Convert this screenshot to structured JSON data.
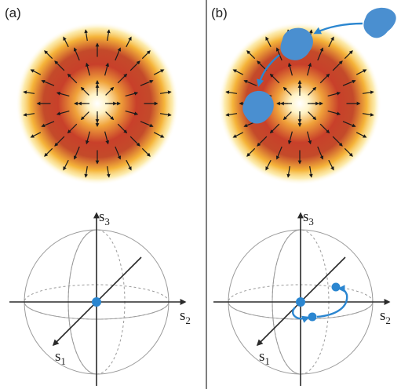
{
  "panels": [
    {
      "id": "a",
      "label": "(a)",
      "axes": {
        "s1": "s",
        "s1_sub": "1",
        "s2": "s",
        "s2_sub": "2",
        "s3": "s",
        "s3_sub": "3"
      }
    },
    {
      "id": "b",
      "label": "(b)",
      "axes": {
        "s1": "s",
        "s1_sub": "1",
        "s2": "s",
        "s2_sub": "2",
        "s3": "s",
        "s3_sub": "3"
      }
    }
  ],
  "colors": {
    "beam_core": "#ffffff",
    "beam_mid": "#f2a23c",
    "beam_ring": "#c8402a",
    "beam_outer": "#f7d24a",
    "arrow": "#1a1a1a",
    "particle": "#4a8fd0",
    "stokes_point": "#2b86d0",
    "sphere_line": "#9a9a9a",
    "axis_line": "#2a2a2a",
    "divider": "#555555"
  }
}
